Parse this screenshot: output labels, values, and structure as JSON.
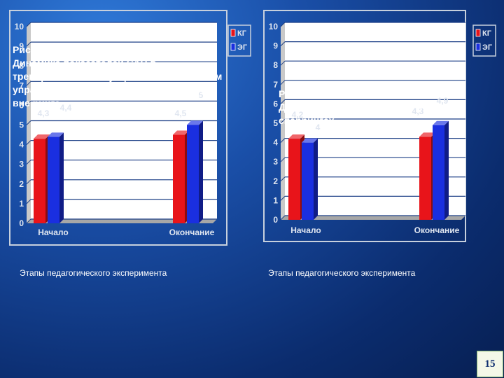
{
  "colors": {
    "kg": "#e8141a",
    "eg": "#1a2fe0"
  },
  "chart_data": [
    {
      "type": "bar",
      "categories": [
        "Начало",
        "Окончание"
      ],
      "series": [
        {
          "name": "КГ",
          "values": [
            4.3,
            4.5
          ]
        },
        {
          "name": "ЭГ",
          "values": [
            4.4,
            5
          ]
        }
      ],
      "data_labels": [
        "4,3",
        "4,4",
        "4,5",
        "5"
      ],
      "y_ticks": [
        "0",
        "1",
        "2",
        "3",
        "4",
        "5",
        "6",
        "7",
        "8",
        "9",
        "10"
      ],
      "ylim": [
        0,
        10
      ],
      "legend": [
        "КГ",
        "ЭГ"
      ],
      "xlabel": "Этапы педагогического эксперимента",
      "caption": "Рис. 5\n Динамика показателей САН в тренировочных ситуациях с выполнением упражнений по СТТМ в паре с партнером вне ринга"
    },
    {
      "type": "bar",
      "categories": [
        "Начало",
        "Окончание"
      ],
      "series": [
        {
          "name": "КГ",
          "values": [
            4.2,
            4.3
          ]
        },
        {
          "name": "ЭГ",
          "values": [
            4,
            4.9
          ]
        }
      ],
      "data_labels": [
        "4,2",
        "4",
        "4,3",
        "4,9"
      ],
      "y_ticks": [
        "0",
        "1",
        "2",
        "3",
        "4",
        "5",
        "6",
        "7",
        "8",
        "9",
        "10"
      ],
      "ylim": [
        0,
        10
      ],
      "legend": [
        "КГ",
        "ЭГ"
      ],
      "xlabel": "Этапы педагогического эксперимента",
      "caption": "Рис. 6\n Динамика показателей САН в спаррингах"
    }
  ],
  "page_number": "15"
}
